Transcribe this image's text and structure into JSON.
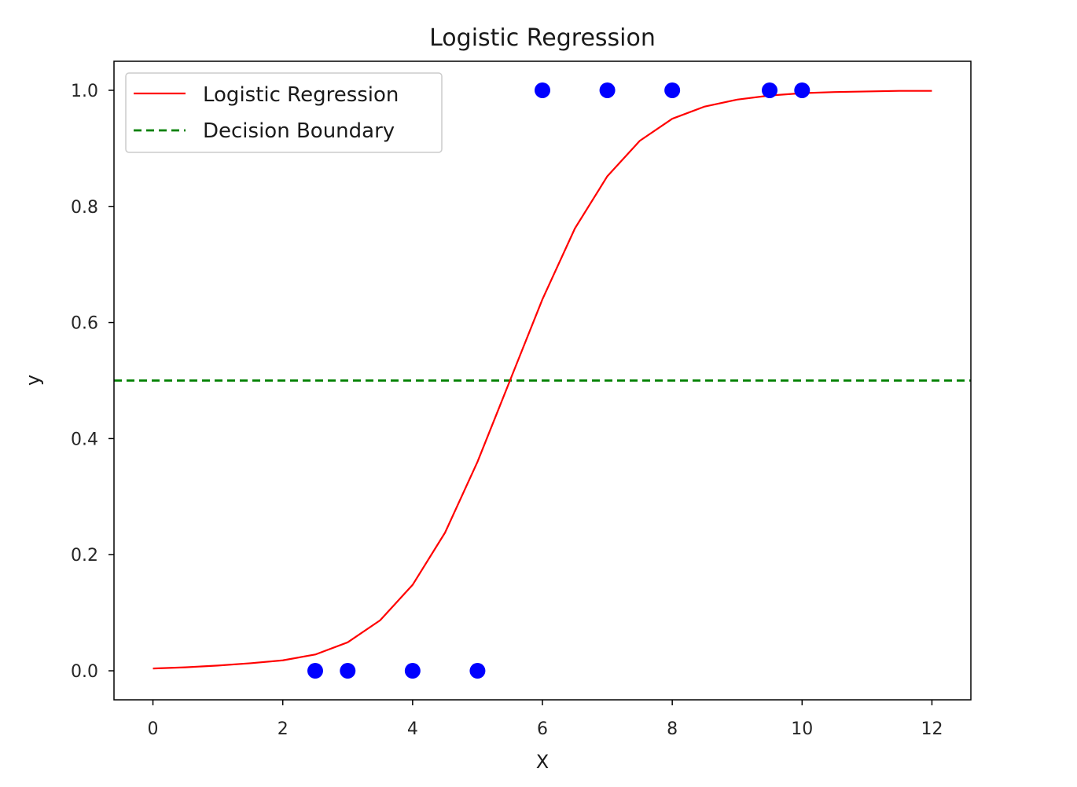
{
  "chart_data": {
    "type": "line",
    "title": "Logistic Regression",
    "xlabel": "X",
    "ylabel": "y",
    "xlim": [
      -0.6,
      12.6
    ],
    "ylim": [
      -0.05,
      1.05
    ],
    "xticks": [
      0,
      2,
      4,
      6,
      8,
      10,
      12
    ],
    "xtick_labels": [
      "0",
      "2",
      "4",
      "6",
      "8",
      "10",
      "12"
    ],
    "yticks": [
      0.0,
      0.2,
      0.4,
      0.6,
      0.8,
      1.0
    ],
    "ytick_labels": [
      "0.0",
      "0.2",
      "0.4",
      "0.6",
      "0.8",
      "1.0"
    ],
    "grid": false,
    "legend_position": "upper-left",
    "scatter": {
      "color": "#0000ff",
      "x": [
        2.5,
        3,
        4,
        5,
        6,
        7,
        8,
        9.5,
        10
      ],
      "y": [
        0,
        0,
        0,
        0,
        1,
        1,
        1,
        1,
        1
      ]
    },
    "series": [
      {
        "name": "Logistic Regression",
        "kind": "curve",
        "color": "#ff0000",
        "style": "solid",
        "x": [
          0,
          0.5,
          1,
          1.5,
          2,
          2.5,
          3,
          3.5,
          4,
          4.5,
          5,
          5.5,
          6,
          6.5,
          7,
          7.5,
          8,
          8.5,
          9,
          9.5,
          10,
          10.5,
          11,
          11.5,
          12
        ],
        "y": [
          0.004,
          0.006,
          0.009,
          0.013,
          0.018,
          0.028,
          0.049,
          0.087,
          0.148,
          0.238,
          0.36,
          0.5,
          0.64,
          0.762,
          0.852,
          0.913,
          0.951,
          0.972,
          0.984,
          0.991,
          0.995,
          0.997,
          0.998,
          0.999,
          0.999
        ]
      },
      {
        "name": "Decision Boundary",
        "kind": "hline",
        "color": "#008000",
        "style": "dashed",
        "y": 0.5
      }
    ]
  }
}
